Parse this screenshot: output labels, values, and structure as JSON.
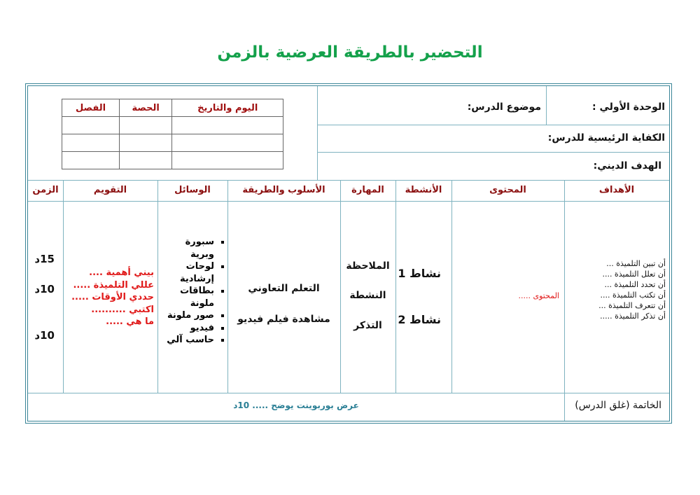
{
  "title": "التحضير بالطريقة العرضية بالزمن",
  "header": {
    "unit": "الوحدة الأولي :",
    "lesson_topic": "موضوع الدرس:",
    "main_competency": "الكفاية الرئيسية للدرس:",
    "religious_goal": "الهدف الديني:"
  },
  "schedule_table": {
    "columns": [
      "اليوم والتاريخ",
      "الحصة",
      "الفصل"
    ]
  },
  "columns": {
    "objectives": "الأهداف",
    "content": "المحتوى",
    "activities": "الأنشطة",
    "skill": "المهارة",
    "method": "الأسلوب والطريقة",
    "tools": "الوسائل",
    "evaluation": "التقويم",
    "time": "الزمن"
  },
  "body": {
    "objectives": [
      "أن تبين التلميذة ...",
      "أن تعلل التلميذة ....",
      "أن تحدد التلميذة ...",
      "أن تكتب التلميذة ....",
      "أن تتعرف التلميذة ...",
      "أن تذكر التلميذة ....."
    ],
    "content": "المحتوى .....",
    "activities": [
      "نشاط 1",
      "نشاط 2"
    ],
    "skills": [
      "الملاحظة",
      "النشطة",
      "التذكر"
    ],
    "methods": [
      "التعلم التعاوني",
      "مشاهدة فيلم فيديو"
    ],
    "tools": [
      "سبورة وبرية",
      "لوحات إرشادية",
      "بطاقات ملونة",
      "صور ملونة",
      "فيديو",
      "حاسب آلي"
    ],
    "evaluation": [
      "بيني أهمية ....",
      "عللي التلميذة .....",
      "حددي الأوقات .....",
      "اكتبي ..........",
      "ما هي ....."
    ],
    "times": [
      "15د",
      "10د",
      "10د"
    ]
  },
  "footer": {
    "label": "الخاتمة (غلق الدرس)",
    "text": "عرض بوربوينت يوضح ..... 10د"
  },
  "colors": {
    "title": "#14a14b",
    "border": "#3a8597",
    "header_text": "#8b1010",
    "evaluation_text": "#e01818",
    "footer_text": "#2a7f95"
  }
}
